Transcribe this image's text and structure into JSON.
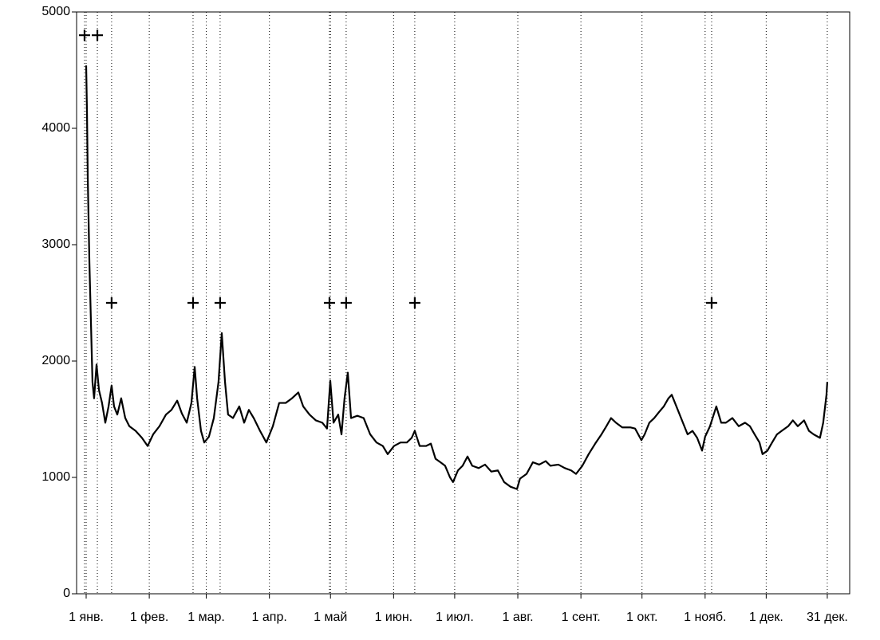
{
  "chart_data": {
    "type": "line",
    "x": [
      0,
      0.4,
      0.8,
      1.6,
      2.4,
      3.1,
      3.9,
      5.1,
      6.3,
      7.8,
      9.4,
      11,
      12.5,
      13.7,
      15.3,
      17.2,
      19.2,
      21.2,
      24.3,
      27.4,
      30.2,
      32.9,
      36,
      39.2,
      41.9,
      44.7,
      47,
      49.4,
      51.7,
      53.3,
      54.5,
      56.4,
      58,
      60.3,
      62.7,
      65,
      66.6,
      68.2,
      69.7,
      72.1,
      75.2,
      77.6,
      79.9,
      82.3,
      85.4,
      88.5,
      91.7,
      94.8,
      98,
      101.1,
      104.2,
      106.6,
      109.7,
      112.8,
      116,
      118.3,
      119.9,
      121.5,
      123.8,
      125.4,
      126.9,
      128.5,
      130.1,
      133.2,
      136.3,
      139.5,
      142.6,
      145.7,
      148.1,
      151.2,
      154.4,
      157.5,
      159.9,
      161.4,
      163.8,
      166.9,
      169.3,
      171.6,
      174,
      176.3,
      178.7,
      180.2,
      182.6,
      184.9,
      187.3,
      189.6,
      192.8,
      195.9,
      199,
      202.2,
      205.3,
      208.4,
      211.6,
      213.1,
      216.3,
      219.4,
      222.5,
      225.7,
      228,
      231.9,
      235.1,
      238.2,
      240.6,
      243.7,
      246.8,
      250,
      253.1,
      255.5,
      257.8,
      260.2,
      263.3,
      267.2,
      269.6,
      272.7,
      274.3,
      276.6,
      279,
      281.3,
      283.7,
      286,
      287.6,
      289.9,
      293.1,
      295.4,
      297.8,
      300.1,
      302.5,
      304,
      306.4,
      309.5,
      311.9,
      314.2,
      317.4,
      320.5,
      323.6,
      326,
      328.3,
      330.7,
      332.2,
      334.6,
      336.9,
      339.3,
      341.6,
      344.8,
      347.1,
      349.5,
      352.6,
      355,
      357.3,
      360.4,
      362,
      363.6,
      364
    ],
    "series": [
      {
        "color": "#000000",
        "values": [
          4540,
          4140,
          3560,
          2840,
          2300,
          1820,
          1680,
          1970,
          1750,
          1640,
          1470,
          1610,
          1790,
          1610,
          1540,
          1680,
          1510,
          1440,
          1400,
          1340,
          1270,
          1370,
          1440,
          1540,
          1580,
          1660,
          1550,
          1470,
          1640,
          1950,
          1680,
          1400,
          1300,
          1350,
          1510,
          1820,
          2240,
          1820,
          1540,
          1510,
          1610,
          1470,
          1580,
          1510,
          1400,
          1300,
          1440,
          1640,
          1640,
          1680,
          1730,
          1610,
          1540,
          1490,
          1470,
          1420,
          1830,
          1470,
          1540,
          1370,
          1680,
          1900,
          1510,
          1530,
          1510,
          1370,
          1300,
          1270,
          1200,
          1270,
          1300,
          1300,
          1340,
          1400,
          1270,
          1270,
          1290,
          1160,
          1130,
          1100,
          1000,
          960,
          1060,
          1100,
          1180,
          1100,
          1080,
          1110,
          1050,
          1060,
          960,
          920,
          900,
          990,
          1030,
          1130,
          1110,
          1140,
          1100,
          1110,
          1080,
          1060,
          1030,
          1100,
          1200,
          1290,
          1370,
          1440,
          1510,
          1470,
          1430,
          1430,
          1420,
          1320,
          1370,
          1470,
          1510,
          1560,
          1610,
          1680,
          1710,
          1610,
          1470,
          1370,
          1400,
          1340,
          1230,
          1350,
          1440,
          1610,
          1470,
          1470,
          1510,
          1440,
          1470,
          1440,
          1370,
          1300,
          1200,
          1230,
          1300,
          1370,
          1400,
          1440,
          1490,
          1440,
          1490,
          1400,
          1370,
          1340,
          1470,
          1710,
          1820
        ]
      }
    ],
    "markers": {
      "color": "#000000",
      "x": [
        -0.8,
        5.5,
        12.5,
        52.5,
        65.8,
        119.5,
        127.7,
        161.4,
        307.2
      ],
      "y": [
        4800,
        4800,
        2500,
        2500,
        2500,
        2500,
        2500,
        2500,
        2500
      ]
    },
    "xlim": [
      -4.7,
      375
    ],
    "xticks": [
      {
        "value": 0,
        "label": "1 янв."
      },
      {
        "value": 31,
        "label": "1 фев."
      },
      {
        "value": 59,
        "label": "1 мар."
      },
      {
        "value": 90,
        "label": "1 апр."
      },
      {
        "value": 120,
        "label": "1 май"
      },
      {
        "value": 151,
        "label": "1 июн."
      },
      {
        "value": 181,
        "label": "1 июл."
      },
      {
        "value": 212,
        "label": "1 авг."
      },
      {
        "value": 243,
        "label": "1 сент."
      },
      {
        "value": 273,
        "label": "1 окт."
      },
      {
        "value": 304,
        "label": "1 нояб."
      },
      {
        "value": 334,
        "label": "1 дек."
      },
      {
        "value": 364,
        "label": "31 дек."
      }
    ],
    "ylim": [
      0,
      5000
    ],
    "yticks": [
      0,
      1000,
      2000,
      3000,
      4000,
      5000
    ],
    "grid": true
  }
}
